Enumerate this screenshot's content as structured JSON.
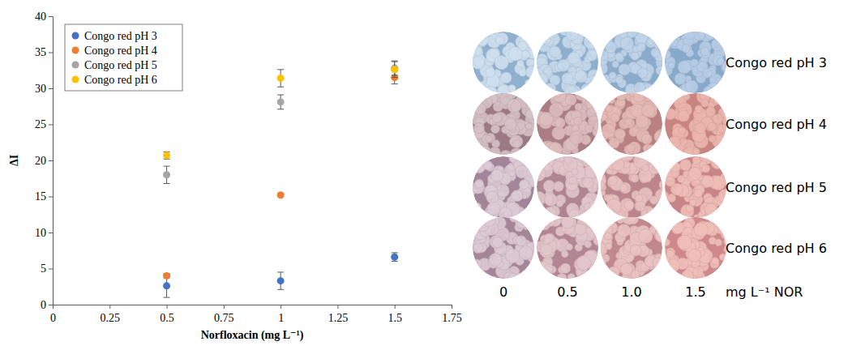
{
  "chart_data": {
    "type": "scatter",
    "x_label": "Norfloxacin (mg L⁻¹)",
    "y_label": "ΔI",
    "x": [
      0.5,
      1,
      1.5
    ],
    "series": [
      {
        "name": "Congo red pH 3",
        "color": "#4472c4",
        "marker": "circle",
        "values": [
          2.6,
          3.3,
          6.6
        ],
        "errors": [
          1.6,
          1.2,
          0.6
        ]
      },
      {
        "name": "Congo red pH 4",
        "color": "#ed7d31",
        "marker": "circle",
        "values": [
          4.0,
          15.2,
          31.5
        ],
        "errors": [
          0.3,
          0.2,
          0.9
        ]
      },
      {
        "name": "Congo red pH 5",
        "color": "#a5a5a5",
        "marker": "circle",
        "values": [
          18.0,
          28.1,
          32.8
        ],
        "errors": [
          1.2,
          1.0,
          1.0
        ]
      },
      {
        "name": "Congo red pH 6",
        "color": "#ffc000",
        "marker": "circle",
        "values": [
          20.7,
          31.4,
          32.6
        ],
        "errors": [
          0.5,
          1.2,
          1.1
        ]
      }
    ],
    "xlim": [
      0,
      1.75
    ],
    "xticks": [
      0,
      0.25,
      0.5,
      0.75,
      1,
      1.25,
      1.5,
      1.75
    ],
    "ylim": [
      0,
      40
    ],
    "yticks": [
      0,
      5,
      10,
      15,
      20,
      25,
      30,
      35,
      40
    ],
    "grid": false,
    "legend": "top-left"
  },
  "image_grid": {
    "rows": [
      "Congo red pH 3",
      "Congo red pH 4",
      "Congo red pH 5",
      "Congo red pH 6"
    ],
    "columns": [
      "0",
      "0.5",
      "1.0",
      "1.5"
    ],
    "unit": "mg L⁻¹ NOR"
  }
}
